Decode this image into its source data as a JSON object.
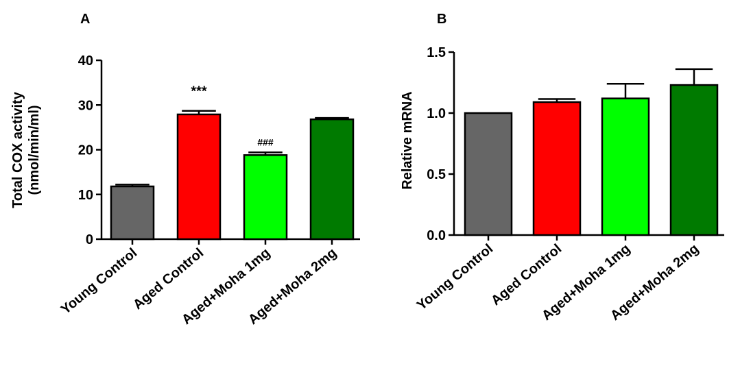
{
  "chart_data": [
    {
      "type": "bar",
      "panel": "A",
      "categories": [
        "Young Control",
        "Aged Control",
        "Aged+Moha 1mg",
        "Aged+Moha 2mg"
      ],
      "values": [
        11.8,
        27.9,
        18.8,
        26.8
      ],
      "errors": [
        0.4,
        0.8,
        0.6,
        0.3
      ],
      "colors": [
        "#666666",
        "#ff0000",
        "#00ff00",
        "#007a00"
      ],
      "ylabel_line1": "Total COX activity",
      "ylabel_line2": "(nmol/min/ml)",
      "ylim": [
        0,
        40
      ],
      "yticks": [
        0,
        10,
        20,
        30,
        40
      ],
      "ytick_labels": [
        "0",
        "10",
        "20",
        "30",
        "40"
      ],
      "annotations": [
        "",
        "***",
        "###",
        ""
      ]
    },
    {
      "type": "bar",
      "panel": "B",
      "categories": [
        "Young Control",
        "Aged Control",
        "Aged+Moha 1mg",
        "Aged+Moha 2mg"
      ],
      "values": [
        1.0,
        1.09,
        1.12,
        1.23
      ],
      "errors": [
        0,
        0.025,
        0.12,
        0.13
      ],
      "colors": [
        "#666666",
        "#ff0000",
        "#00ff00",
        "#007a00"
      ],
      "ylabel_line1": "Relative mRNA",
      "ylabel_line2": "",
      "ylim": [
        0,
        1.5
      ],
      "yticks": [
        0,
        0.5,
        1.0,
        1.5
      ],
      "ytick_labels": [
        "0.0",
        "0.5",
        "1.0",
        "1.5"
      ],
      "annotations": [
        "",
        "",
        "",
        ""
      ]
    }
  ]
}
